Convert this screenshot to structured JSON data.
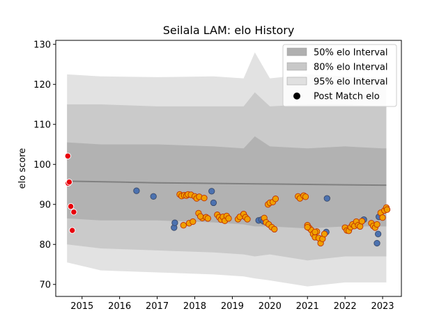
{
  "chart_data": {
    "type": "scatter",
    "title": "Seilala LAM: elo History",
    "xlabel": "",
    "ylabel": "elo score",
    "xlim": [
      2014.3,
      2023.5
    ],
    "ylim": [
      67,
      131
    ],
    "x_ticks": [
      2015,
      2016,
      2017,
      2018,
      2019,
      2020,
      2021,
      2022,
      2023
    ],
    "y_ticks": [
      70,
      80,
      90,
      100,
      110,
      120,
      130
    ],
    "grid": false,
    "legend_position": "top-right",
    "legend": [
      {
        "label": "50% elo Interval",
        "kind": "band",
        "color": "#b0b0b0"
      },
      {
        "label": "80% elo Interval",
        "kind": "band",
        "color": "#c8c8c8"
      },
      {
        "label": "95% elo Interval",
        "kind": "band",
        "color": "#e0e0e0"
      },
      {
        "label": "Post Match elo",
        "kind": "marker",
        "color": "#000000"
      }
    ],
    "intervals": [
      {
        "name": "95% elo Interval",
        "color": "#e0e0e0",
        "x": [
          2014.6,
          2015.5,
          2017.0,
          2018.5,
          2019.3,
          2019.6,
          2020.0,
          2021.0,
          2022.0,
          2023.0,
          2023.1
        ],
        "upper": [
          122.5,
          122.0,
          121.8,
          122.0,
          121.5,
          128.0,
          121.5,
          122.5,
          122.0,
          121.5,
          121.5
        ],
        "lower": [
          75.5,
          73.5,
          73.0,
          72.5,
          72.0,
          71.5,
          71.0,
          69.5,
          70.5,
          70.5,
          70.5
        ]
      },
      {
        "name": "80% elo Interval",
        "color": "#c8c8c8",
        "x": [
          2014.6,
          2015.5,
          2017.0,
          2018.5,
          2019.3,
          2019.6,
          2020.0,
          2021.0,
          2022.0,
          2023.0,
          2023.1
        ],
        "upper": [
          115.0,
          115.0,
          114.5,
          114.5,
          114.5,
          118.0,
          114.5,
          115.0,
          115.0,
          114.5,
          114.5
        ],
        "lower": [
          80.0,
          79.0,
          78.5,
          78.0,
          77.5,
          77.0,
          77.5,
          76.0,
          77.0,
          77.0,
          77.0
        ]
      },
      {
        "name": "50% elo Interval",
        "color": "#b0b0b0",
        "x": [
          2014.6,
          2015.5,
          2017.0,
          2018.5,
          2019.3,
          2019.6,
          2020.0,
          2021.0,
          2022.0,
          2023.0,
          2023.1
        ],
        "upper": [
          105.5,
          105.0,
          105.0,
          104.5,
          104.0,
          107.0,
          104.5,
          104.0,
          104.5,
          104.0,
          104.0
        ],
        "lower": [
          86.5,
          86.0,
          86.0,
          85.5,
          85.0,
          84.5,
          84.5,
          84.0,
          84.5,
          84.5,
          84.5
        ]
      }
    ],
    "mean_line": {
      "x": [
        2014.6,
        2016.0,
        2017.0,
        2018.0,
        2019.0,
        2020.0,
        2021.0,
        2022.0,
        2023.0,
        2023.1
      ],
      "y": [
        95.8,
        95.6,
        95.4,
        95.3,
        95.2,
        95.1,
        95.0,
        94.9,
        94.8,
        94.8
      ]
    },
    "series": [
      {
        "name": "Post Match elo",
        "color": "#e8000b",
        "stroke": "#ffffff",
        "points": [
          [
            2014.62,
            102.1
          ],
          [
            2014.63,
            95.3
          ],
          [
            2014.66,
            95.6
          ],
          [
            2014.7,
            89.5
          ],
          [
            2014.74,
            83.5
          ],
          [
            2014.78,
            88.1
          ]
        ]
      },
      {
        "color": "#4c72b0",
        "stroke": "#3a4a6a",
        "points": [
          [
            2016.45,
            93.4
          ],
          [
            2016.9,
            92.0
          ],
          [
            2017.45,
            84.2
          ],
          [
            2017.47,
            85.4
          ],
          [
            2018.45,
            93.3
          ],
          [
            2018.5,
            90.4
          ],
          [
            2019.7,
            86.0
          ],
          [
            2019.78,
            86.2
          ],
          [
            2019.83,
            85.8
          ],
          [
            2021.52,
            91.5
          ],
          [
            2021.5,
            83.1
          ],
          [
            2022.5,
            86.2
          ],
          [
            2022.85,
            80.3
          ],
          [
            2022.88,
            82.6
          ],
          [
            2022.9,
            86.9
          ]
        ]
      },
      {
        "color": "#f0a000",
        "stroke": "#c03000",
        "points": [
          [
            2017.6,
            92.5
          ],
          [
            2017.65,
            92.1
          ],
          [
            2017.72,
            92.3
          ],
          [
            2017.78,
            92.2
          ],
          [
            2017.82,
            92.5
          ],
          [
            2017.9,
            92.4
          ],
          [
            2017.7,
            84.8
          ],
          [
            2017.85,
            85.3
          ],
          [
            2017.95,
            85.7
          ],
          [
            2018.0,
            92.0
          ],
          [
            2018.05,
            91.5
          ],
          [
            2018.1,
            87.8
          ],
          [
            2018.12,
            91.9
          ],
          [
            2018.2,
            86.6
          ],
          [
            2018.25,
            91.6
          ],
          [
            2018.15,
            87.0
          ],
          [
            2018.3,
            86.8
          ],
          [
            2018.35,
            86.5
          ],
          [
            2018.6,
            87.4
          ],
          [
            2018.65,
            86.8
          ],
          [
            2018.7,
            86.2
          ],
          [
            2018.75,
            86.9
          ],
          [
            2018.8,
            85.9
          ],
          [
            2018.85,
            87.1
          ],
          [
            2018.9,
            86.5
          ],
          [
            2019.15,
            86.3
          ],
          [
            2019.2,
            86.9
          ],
          [
            2019.3,
            87.6
          ],
          [
            2019.35,
            86.8
          ],
          [
            2019.4,
            86.3
          ],
          [
            2019.85,
            86.6
          ],
          [
            2019.9,
            85.5
          ],
          [
            2019.95,
            90.0
          ],
          [
            2019.97,
            85.0
          ],
          [
            2020.0,
            90.4
          ],
          [
            2020.05,
            84.3
          ],
          [
            2020.08,
            90.6
          ],
          [
            2020.12,
            83.8
          ],
          [
            2020.15,
            91.4
          ],
          [
            2020.75,
            92.0
          ],
          [
            2020.8,
            91.5
          ],
          [
            2020.9,
            92.2
          ],
          [
            2020.95,
            91.9
          ],
          [
            2021.0,
            84.8
          ],
          [
            2021.05,
            84.1
          ],
          [
            2021.1,
            83.6
          ],
          [
            2021.15,
            82.6
          ],
          [
            2021.2,
            81.8
          ],
          [
            2021.25,
            83.2
          ],
          [
            2021.3,
            81.6
          ],
          [
            2021.35,
            80.3
          ],
          [
            2021.4,
            81.4
          ],
          [
            2021.45,
            82.6
          ],
          [
            2021.0,
            84.3
          ],
          [
            2021.2,
            83.1
          ],
          [
            2022.0,
            84.2
          ],
          [
            2022.05,
            83.5
          ],
          [
            2022.1,
            83.4
          ],
          [
            2022.15,
            84.3
          ],
          [
            2022.2,
            85.0
          ],
          [
            2022.25,
            84.6
          ],
          [
            2022.3,
            85.7
          ],
          [
            2022.35,
            84.8
          ],
          [
            2022.4,
            84.5
          ],
          [
            2022.45,
            85.8
          ],
          [
            2022.7,
            85.3
          ],
          [
            2022.75,
            84.6
          ],
          [
            2022.8,
            84.2
          ],
          [
            2022.85,
            85.0
          ],
          [
            2022.95,
            87.9
          ],
          [
            2023.0,
            86.7
          ],
          [
            2023.05,
            88.5
          ],
          [
            2023.1,
            89.2
          ],
          [
            2023.12,
            88.7
          ]
        ]
      }
    ]
  }
}
